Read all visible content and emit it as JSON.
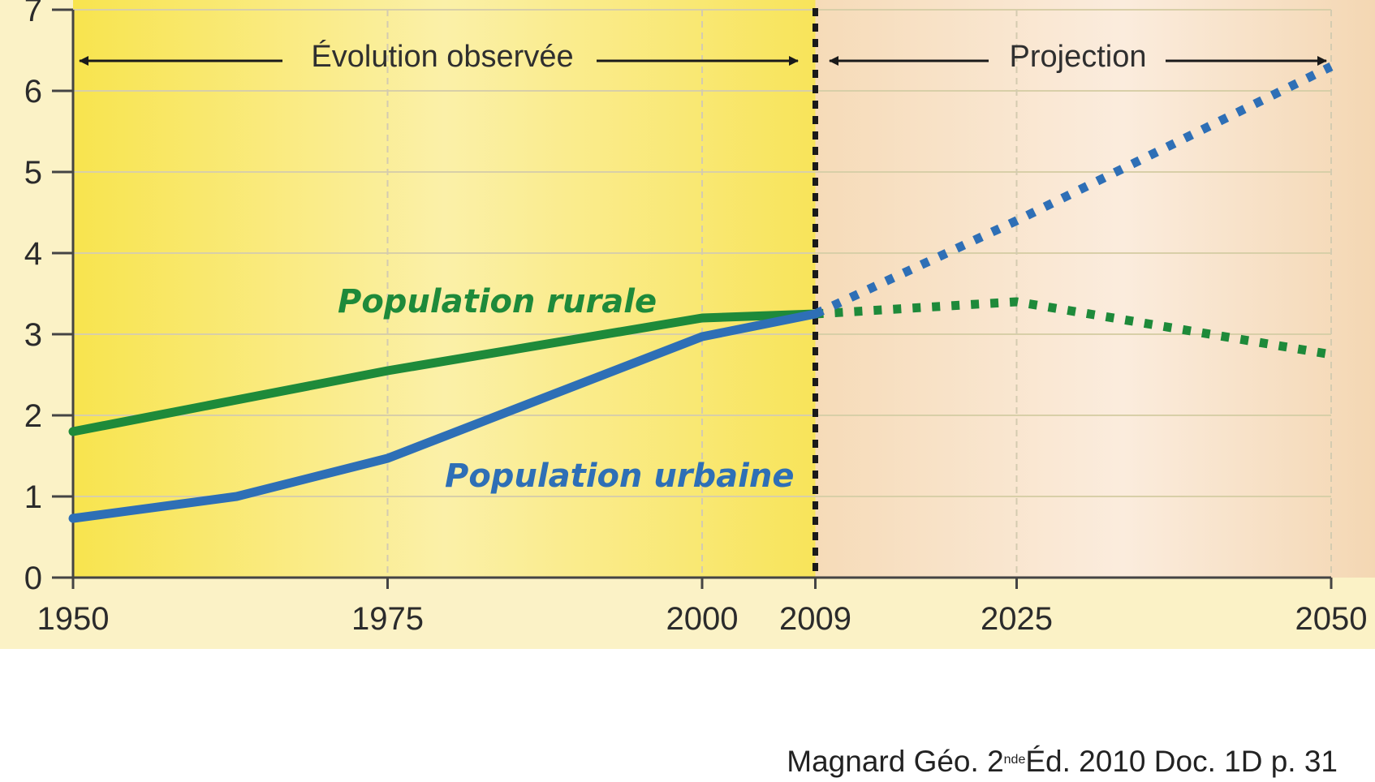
{
  "chart_data": {
    "type": "line",
    "title": "",
    "xlabel": "",
    "ylabel": "",
    "x_ticks": [
      1950,
      1975,
      2000,
      2009,
      2025,
      2050
    ],
    "y_ticks": [
      0,
      1,
      2,
      3,
      4,
      5,
      6,
      7
    ],
    "xlim": [
      1950,
      2050
    ],
    "ylim": [
      0,
      7
    ],
    "grid": true,
    "divider_year": 2009,
    "periods": {
      "observed": "Évolution observée",
      "projection": "Projection"
    },
    "series": [
      {
        "name": "Population rurale",
        "color": "#1e8a3a",
        "observed": [
          [
            1950,
            1.8
          ],
          [
            1975,
            2.55
          ],
          [
            2000,
            3.2
          ],
          [
            2009,
            3.25
          ]
        ],
        "projection": [
          [
            2009,
            3.25
          ],
          [
            2025,
            3.4
          ],
          [
            2050,
            2.75
          ]
        ]
      },
      {
        "name": "Population urbaine",
        "color": "#2e6fb6",
        "observed": [
          [
            1950,
            0.73
          ],
          [
            1963,
            1.0
          ],
          [
            1975,
            1.47
          ],
          [
            2000,
            2.97
          ],
          [
            2009,
            3.25
          ]
        ],
        "projection": [
          [
            2009,
            3.25
          ],
          [
            2025,
            4.4
          ],
          [
            2050,
            6.3
          ]
        ]
      }
    ]
  },
  "source": {
    "before_sup": "Magnard Géo. 2",
    "sup": "nde",
    "after_sup": "Éd. 2010 Doc. 1D  p. 31"
  }
}
